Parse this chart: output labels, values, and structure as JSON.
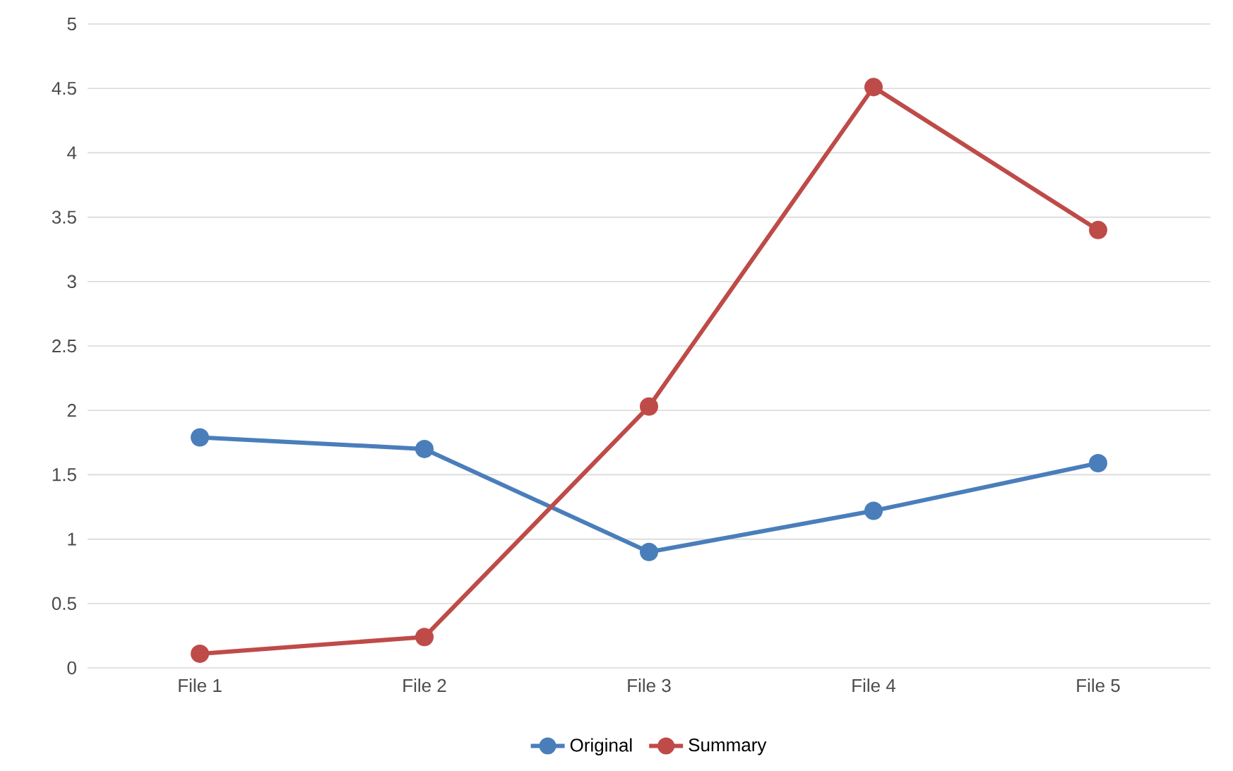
{
  "chart_data": {
    "type": "line",
    "categories": [
      "File 1",
      "File 2",
      "File 3",
      "File 4",
      "File 5"
    ],
    "series": [
      {
        "name": "Original",
        "color": "#4a7ebb",
        "values": [
          1.79,
          1.7,
          0.9,
          1.22,
          1.59
        ]
      },
      {
        "name": "Summary",
        "color": "#be4b48",
        "values": [
          0.11,
          0.24,
          2.03,
          4.51,
          3.4
        ]
      }
    ],
    "ylim": [
      0,
      5
    ],
    "yticks": [
      0,
      0.5,
      1,
      1.5,
      2,
      2.5,
      3,
      3.5,
      4,
      4.5,
      5
    ],
    "grid": "y",
    "legend": "bottom",
    "marker": "circle",
    "line_style": "solid"
  }
}
